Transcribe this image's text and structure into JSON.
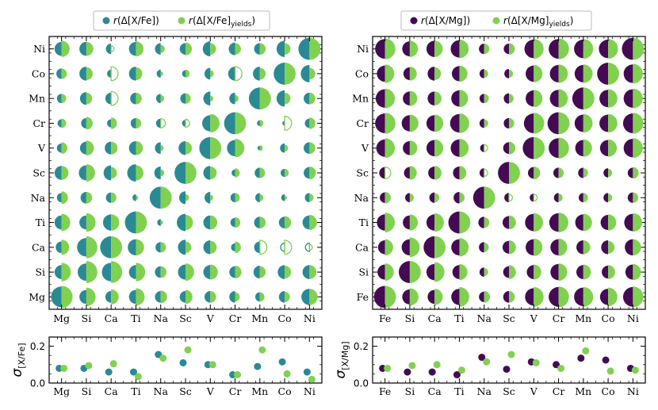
{
  "colors": {
    "teal": "#2a8a94",
    "lightgreen": "#80d150",
    "purple": "#440b54"
  },
  "chart_data": [
    {
      "type": "scatter",
      "panel": "left-top",
      "legend": [
        "r(Δ[X/Fe])",
        "r(Δ[X/Fe]yields)"
      ],
      "x_labels": [
        "Mg",
        "Si",
        "Ca",
        "Ti",
        "Na",
        "Sc",
        "V",
        "Cr",
        "Mn",
        "Co",
        "Ni"
      ],
      "y_labels": [
        "Mg",
        "Si",
        "Ca",
        "Ti",
        "Na",
        "Sc",
        "V",
        "Cr",
        "Mn",
        "Co",
        "Ni"
      ],
      "legend_placement": "top",
      "left_values": [
        [
          0.9,
          0.6,
          0.5,
          0.6,
          0.5,
          0.5,
          0.5,
          0.5,
          0.4,
          0.5,
          0.7
        ],
        [
          0.6,
          0.75,
          0.8,
          0.6,
          0.5,
          0.65,
          0.6,
          0.5,
          0.55,
          0.6,
          0.6
        ],
        [
          0.5,
          0.8,
          0.95,
          0.7,
          0.45,
          0.65,
          0.6,
          0.35,
          0.5,
          -0.35,
          -0.35
        ],
        [
          0.6,
          0.6,
          0.7,
          0.95,
          0.3,
          0.75,
          0.6,
          0.4,
          0.5,
          0.5,
          0.6
        ],
        [
          0.4,
          0.5,
          0.45,
          0.3,
          0.95,
          0.55,
          0.5,
          0.4,
          0.4,
          0.3,
          0.4
        ],
        [
          0.6,
          0.65,
          0.65,
          0.75,
          0.55,
          0.95,
          0.6,
          0.3,
          0.45,
          0.35,
          0.5
        ],
        [
          0.4,
          0.55,
          0.55,
          0.6,
          0.5,
          0.6,
          0.95,
          0.7,
          0.2,
          0.4,
          0.5
        ],
        [
          0.35,
          0.45,
          0.35,
          0.45,
          0.4,
          0.3,
          0.7,
          0.95,
          0.25,
          0.2,
          0.4
        ],
        [
          0.4,
          0.55,
          0.5,
          0.5,
          0.4,
          0.45,
          0.6,
          0.5,
          0.95,
          0.7,
          0.5
        ],
        [
          0.45,
          0.6,
          0.35,
          0.6,
          0.35,
          0.3,
          0.5,
          0.6,
          0.6,
          0.95,
          0.75
        ],
        [
          0.6,
          0.6,
          0.45,
          0.6,
          0.5,
          0.5,
          0.65,
          0.55,
          0.5,
          0.7,
          0.95
        ]
      ],
      "right_values": [
        [
          0.95,
          0.8,
          0.65,
          0.75,
          0.55,
          0.6,
          0.5,
          0.4,
          0.4,
          0.45,
          0.7
        ],
        [
          0.8,
          0.95,
          0.95,
          0.8,
          0.5,
          0.75,
          0.65,
          0.55,
          0.5,
          0.55,
          0.6
        ],
        [
          0.65,
          0.95,
          0.95,
          0.7,
          0.45,
          0.5,
          0.55,
          0.5,
          -0.6,
          -0.6,
          -0.25
        ],
        [
          0.75,
          0.8,
          0.7,
          0.95,
          0.2,
          0.65,
          0.6,
          0.45,
          0.5,
          0.55,
          0.65
        ],
        [
          0.55,
          0.5,
          0.45,
          0.2,
          0.95,
          0.3,
          0.25,
          0.4,
          0.3,
          0.2,
          0.35
        ],
        [
          0.6,
          0.75,
          0.5,
          0.65,
          0.3,
          0.95,
          0.55,
          0.4,
          0.45,
          0.35,
          0.55
        ],
        [
          0.5,
          0.65,
          0.55,
          0.6,
          0.25,
          0.55,
          0.95,
          0.8,
          0.25,
          0.3,
          0.5
        ],
        [
          0.4,
          0.55,
          0.5,
          0.45,
          -0.4,
          -0.35,
          0.8,
          0.95,
          0.3,
          -0.6,
          0.5
        ],
        [
          0.4,
          0.5,
          -0.6,
          0.5,
          0.3,
          0.45,
          0.25,
          0.3,
          0.95,
          0.5,
          0.5
        ],
        [
          0.45,
          0.55,
          -0.6,
          0.55,
          0.2,
          0.35,
          0.3,
          -0.6,
          0.5,
          0.95,
          0.5
        ],
        [
          0.7,
          0.6,
          -0.25,
          0.65,
          0.35,
          0.55,
          0.5,
          0.5,
          0.5,
          0.5,
          0.95
        ]
      ]
    },
    {
      "type": "scatter",
      "panel": "left-bottom",
      "ylabel": "σ[X/Fe]",
      "categories": [
        "Mg",
        "Si",
        "Ca",
        "Ti",
        "Na",
        "Sc",
        "V",
        "Cr",
        "Mn",
        "Co",
        "Ni"
      ],
      "ylim": [
        0.0,
        0.25
      ],
      "yticks": [
        "0.0",
        "0.2"
      ],
      "series": [
        {
          "values": [
            0.08,
            0.08,
            0.06,
            0.06,
            0.155,
            0.11,
            0.1,
            0.045,
            0.09,
            0.115,
            0.06
          ]
        },
        {
          "values": [
            0.08,
            0.095,
            0.105,
            0.035,
            0.135,
            0.18,
            0.1,
            0.045,
            0.18,
            0.05,
            0.02
          ]
        }
      ]
    },
    {
      "type": "scatter",
      "panel": "right-top",
      "legend": [
        "r(Δ[X/Mg])",
        "r(Δ[X/Mg]yields)"
      ],
      "x_labels": [
        "Fe",
        "Si",
        "Ca",
        "Ti",
        "Na",
        "Sc",
        "V",
        "Cr",
        "Mn",
        "Co",
        "Ni"
      ],
      "y_labels": [
        "Fe",
        "Si",
        "Ca",
        "Ti",
        "Na",
        "Sc",
        "V",
        "Cr",
        "Mn",
        "Co",
        "Ni"
      ],
      "legend_placement": "top",
      "left_values": [
        [
          0.95,
          0.65,
          0.6,
          0.7,
          0.45,
          0.5,
          0.75,
          0.85,
          0.8,
          0.7,
          0.85
        ],
        [
          0.65,
          0.95,
          0.7,
          0.6,
          0.4,
          0.5,
          0.6,
          0.7,
          0.6,
          0.55,
          0.65
        ],
        [
          0.6,
          0.7,
          0.95,
          0.7,
          0.45,
          0.55,
          0.7,
          0.7,
          0.6,
          0.6,
          0.7
        ],
        [
          0.7,
          0.6,
          0.7,
          0.95,
          0.5,
          0.55,
          0.75,
          0.8,
          0.7,
          0.65,
          0.75
        ],
        [
          0.45,
          0.4,
          0.45,
          0.5,
          0.95,
          0.4,
          0.35,
          0.4,
          0.4,
          0.4,
          0.45
        ],
        [
          0.5,
          0.5,
          0.55,
          0.55,
          0.4,
          0.95,
          0.5,
          0.45,
          0.45,
          0.4,
          0.45
        ],
        [
          0.75,
          0.6,
          0.7,
          0.75,
          0.35,
          0.5,
          0.95,
          0.85,
          0.7,
          0.7,
          0.8
        ],
        [
          0.85,
          0.7,
          0.7,
          0.8,
          0.4,
          0.45,
          0.85,
          0.95,
          0.75,
          0.75,
          0.85
        ],
        [
          0.8,
          0.6,
          0.6,
          0.7,
          0.4,
          0.45,
          0.7,
          0.75,
          0.95,
          0.75,
          0.8
        ],
        [
          0.7,
          0.55,
          0.6,
          0.65,
          0.4,
          0.4,
          0.7,
          0.75,
          0.75,
          0.95,
          0.8
        ],
        [
          0.85,
          0.65,
          0.7,
          0.75,
          0.45,
          0.45,
          0.8,
          0.85,
          0.8,
          0.8,
          0.95
        ]
      ],
      "right_values": [
        [
          0.95,
          0.75,
          0.7,
          0.85,
          0.5,
          0.5,
          0.85,
          0.9,
          0.85,
          0.8,
          0.9
        ],
        [
          0.75,
          0.95,
          0.85,
          0.7,
          0.35,
          0.6,
          0.65,
          0.75,
          0.65,
          0.6,
          0.7
        ],
        [
          0.7,
          0.85,
          0.95,
          0.8,
          0.4,
          0.6,
          0.75,
          0.75,
          0.6,
          0.55,
          0.7
        ],
        [
          0.85,
          0.7,
          0.8,
          0.95,
          0.45,
          0.6,
          0.8,
          0.85,
          0.75,
          0.7,
          0.8
        ],
        [
          0.5,
          0.35,
          0.4,
          0.45,
          0.95,
          -0.3,
          -0.3,
          0.35,
          0.4,
          0.35,
          0.45
        ],
        [
          -0.5,
          0.6,
          0.6,
          0.6,
          -0.3,
          0.95,
          0.55,
          0.45,
          0.4,
          0.35,
          0.5
        ],
        [
          0.85,
          0.65,
          0.75,
          0.8,
          -0.3,
          0.55,
          0.95,
          0.9,
          0.75,
          0.75,
          0.85
        ],
        [
          0.9,
          0.75,
          0.75,
          0.85,
          0.35,
          0.45,
          0.9,
          0.95,
          0.8,
          0.8,
          0.9
        ],
        [
          0.85,
          0.65,
          0.6,
          0.75,
          0.4,
          0.4,
          0.75,
          0.8,
          0.95,
          0.8,
          0.85
        ],
        [
          0.8,
          0.6,
          0.55,
          0.7,
          0.35,
          0.35,
          0.75,
          0.8,
          0.8,
          0.95,
          0.85
        ],
        [
          0.9,
          0.7,
          0.7,
          0.8,
          0.45,
          0.5,
          0.85,
          0.9,
          0.85,
          0.85,
          0.95
        ]
      ]
    },
    {
      "type": "scatter",
      "panel": "right-bottom",
      "ylabel": "σ[X/Mg]",
      "categories": [
        "Fe",
        "Si",
        "Ca",
        "Ti",
        "Na",
        "Sc",
        "V",
        "Cr",
        "Mn",
        "Co",
        "Ni"
      ],
      "ylim": [
        0.0,
        0.25
      ],
      "yticks": [
        "0.0",
        "0.2"
      ],
      "series": [
        {
          "values": [
            0.08,
            0.06,
            0.06,
            0.045,
            0.14,
            0.075,
            0.115,
            0.1,
            0.135,
            0.125,
            0.08
          ]
        },
        {
          "values": [
            0.08,
            0.095,
            0.1,
            0.07,
            0.115,
            0.155,
            0.11,
            0.08,
            0.175,
            0.065,
            0.07
          ]
        }
      ]
    }
  ]
}
